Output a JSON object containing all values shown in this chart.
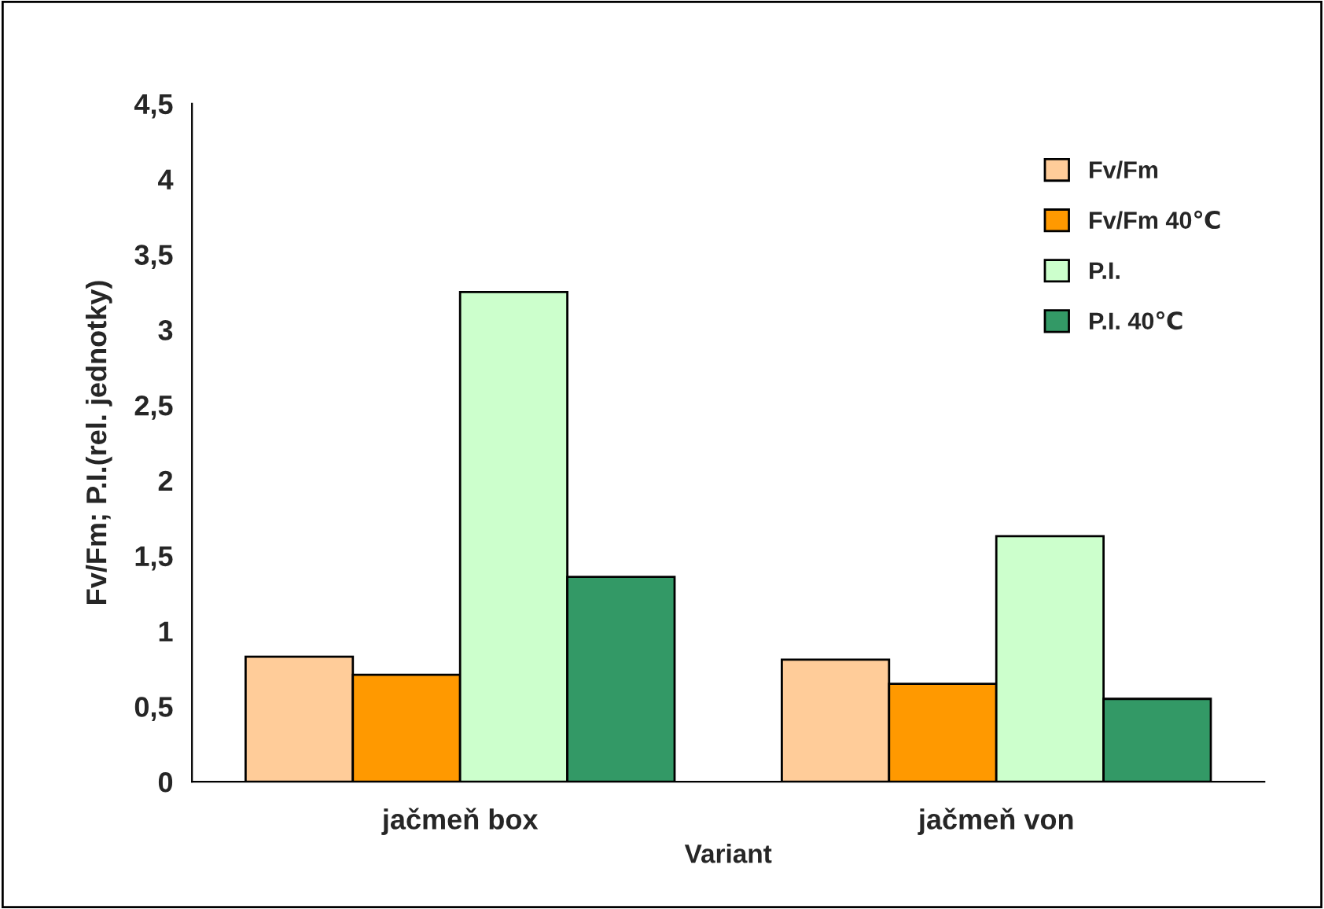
{
  "chart_data": {
    "type": "bar",
    "xlabel": "Variant",
    "ylabel": "Fv/Fm; P.I.(rel. jednotky)",
    "categories": [
      "jačmeň box",
      "jačmeň von"
    ],
    "series": [
      {
        "name": "Fv/Fm",
        "color": "#ffcc99",
        "values": [
          0.83,
          0.81
        ]
      },
      {
        "name": "Fv/Fm 40℃",
        "color": "#ff9900",
        "values": [
          0.71,
          0.65
        ]
      },
      {
        "name": "P.I.",
        "color": "#ccffcc",
        "values": [
          3.25,
          1.63
        ]
      },
      {
        "name": "P.I. 40℃",
        "color": "#339966",
        "values": [
          1.36,
          0.55
        ]
      }
    ],
    "ylim": [
      0,
      4.5
    ],
    "yticks": [
      {
        "value": 0,
        "label": "0"
      },
      {
        "value": 0.5,
        "label": "0,5"
      },
      {
        "value": 1,
        "label": "1"
      },
      {
        "value": 1.5,
        "label": "1,5"
      },
      {
        "value": 2,
        "label": "2"
      },
      {
        "value": 2.5,
        "label": "2,5"
      },
      {
        "value": 3,
        "label": "3"
      },
      {
        "value": 3.5,
        "label": "3,5"
      },
      {
        "value": 4,
        "label": "4"
      },
      {
        "value": 4.5,
        "label": "4,5"
      }
    ],
    "grid": false,
    "legend": "top right"
  }
}
